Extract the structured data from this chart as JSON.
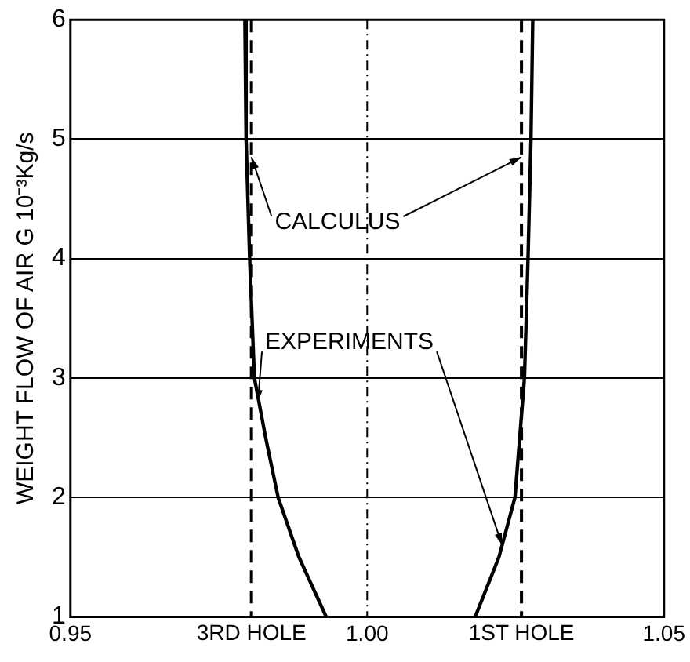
{
  "chart_data": {
    "type": "line",
    "ylabel": "WEIGHT FLOW OF AIR G 10⁻³Kg/s",
    "xlim": [
      0.95,
      1.05
    ],
    "xticks": [
      {
        "value": 0.95,
        "label": "0.95"
      },
      {
        "value": 1.0,
        "label": "1.00"
      },
      {
        "value": 1.05,
        "label": "1.05"
      }
    ],
    "ylim": [
      1,
      6
    ],
    "yticks": [
      1,
      2,
      3,
      4,
      5,
      6
    ],
    "grid": "y",
    "marker": "none",
    "line_style": "solid",
    "series": [
      {
        "color": "#000000",
        "x": [
          0.9794,
          0.9796,
          0.9802,
          0.981,
          0.9829,
          0.985,
          0.9885,
          0.9931
        ],
        "values": [
          6,
          5,
          4,
          3,
          2.5,
          2,
          1.5,
          1
        ]
      },
      {
        "color": "#000000",
        "x": [
          1.0279,
          1.0276,
          1.0271,
          1.0265,
          1.0257,
          1.0249,
          1.0222,
          1.0182
        ],
        "values": [
          6,
          5,
          4,
          3,
          2.5,
          2,
          1.5,
          1
        ]
      }
    ],
    "ref_lines": [
      {
        "axis": "x",
        "value": 0.9805,
        "label": "3RD HOLE",
        "color": "#000000",
        "line_style": "dashed"
      },
      {
        "axis": "x",
        "value": 1.026,
        "label": "1ST HOLE",
        "color": "#000000",
        "line_style": "dashed"
      },
      {
        "axis": "x",
        "value": 1.0,
        "label": null,
        "color": "#000000",
        "line_style": "dotted"
      }
    ],
    "annotations": [
      {
        "text": "CALCULUS",
        "x": 0.9805,
        "y": 4.85
      },
      {
        "text": "EXPERIMENTS",
        "x": 0.9816,
        "y": 2.8
      }
    ]
  }
}
